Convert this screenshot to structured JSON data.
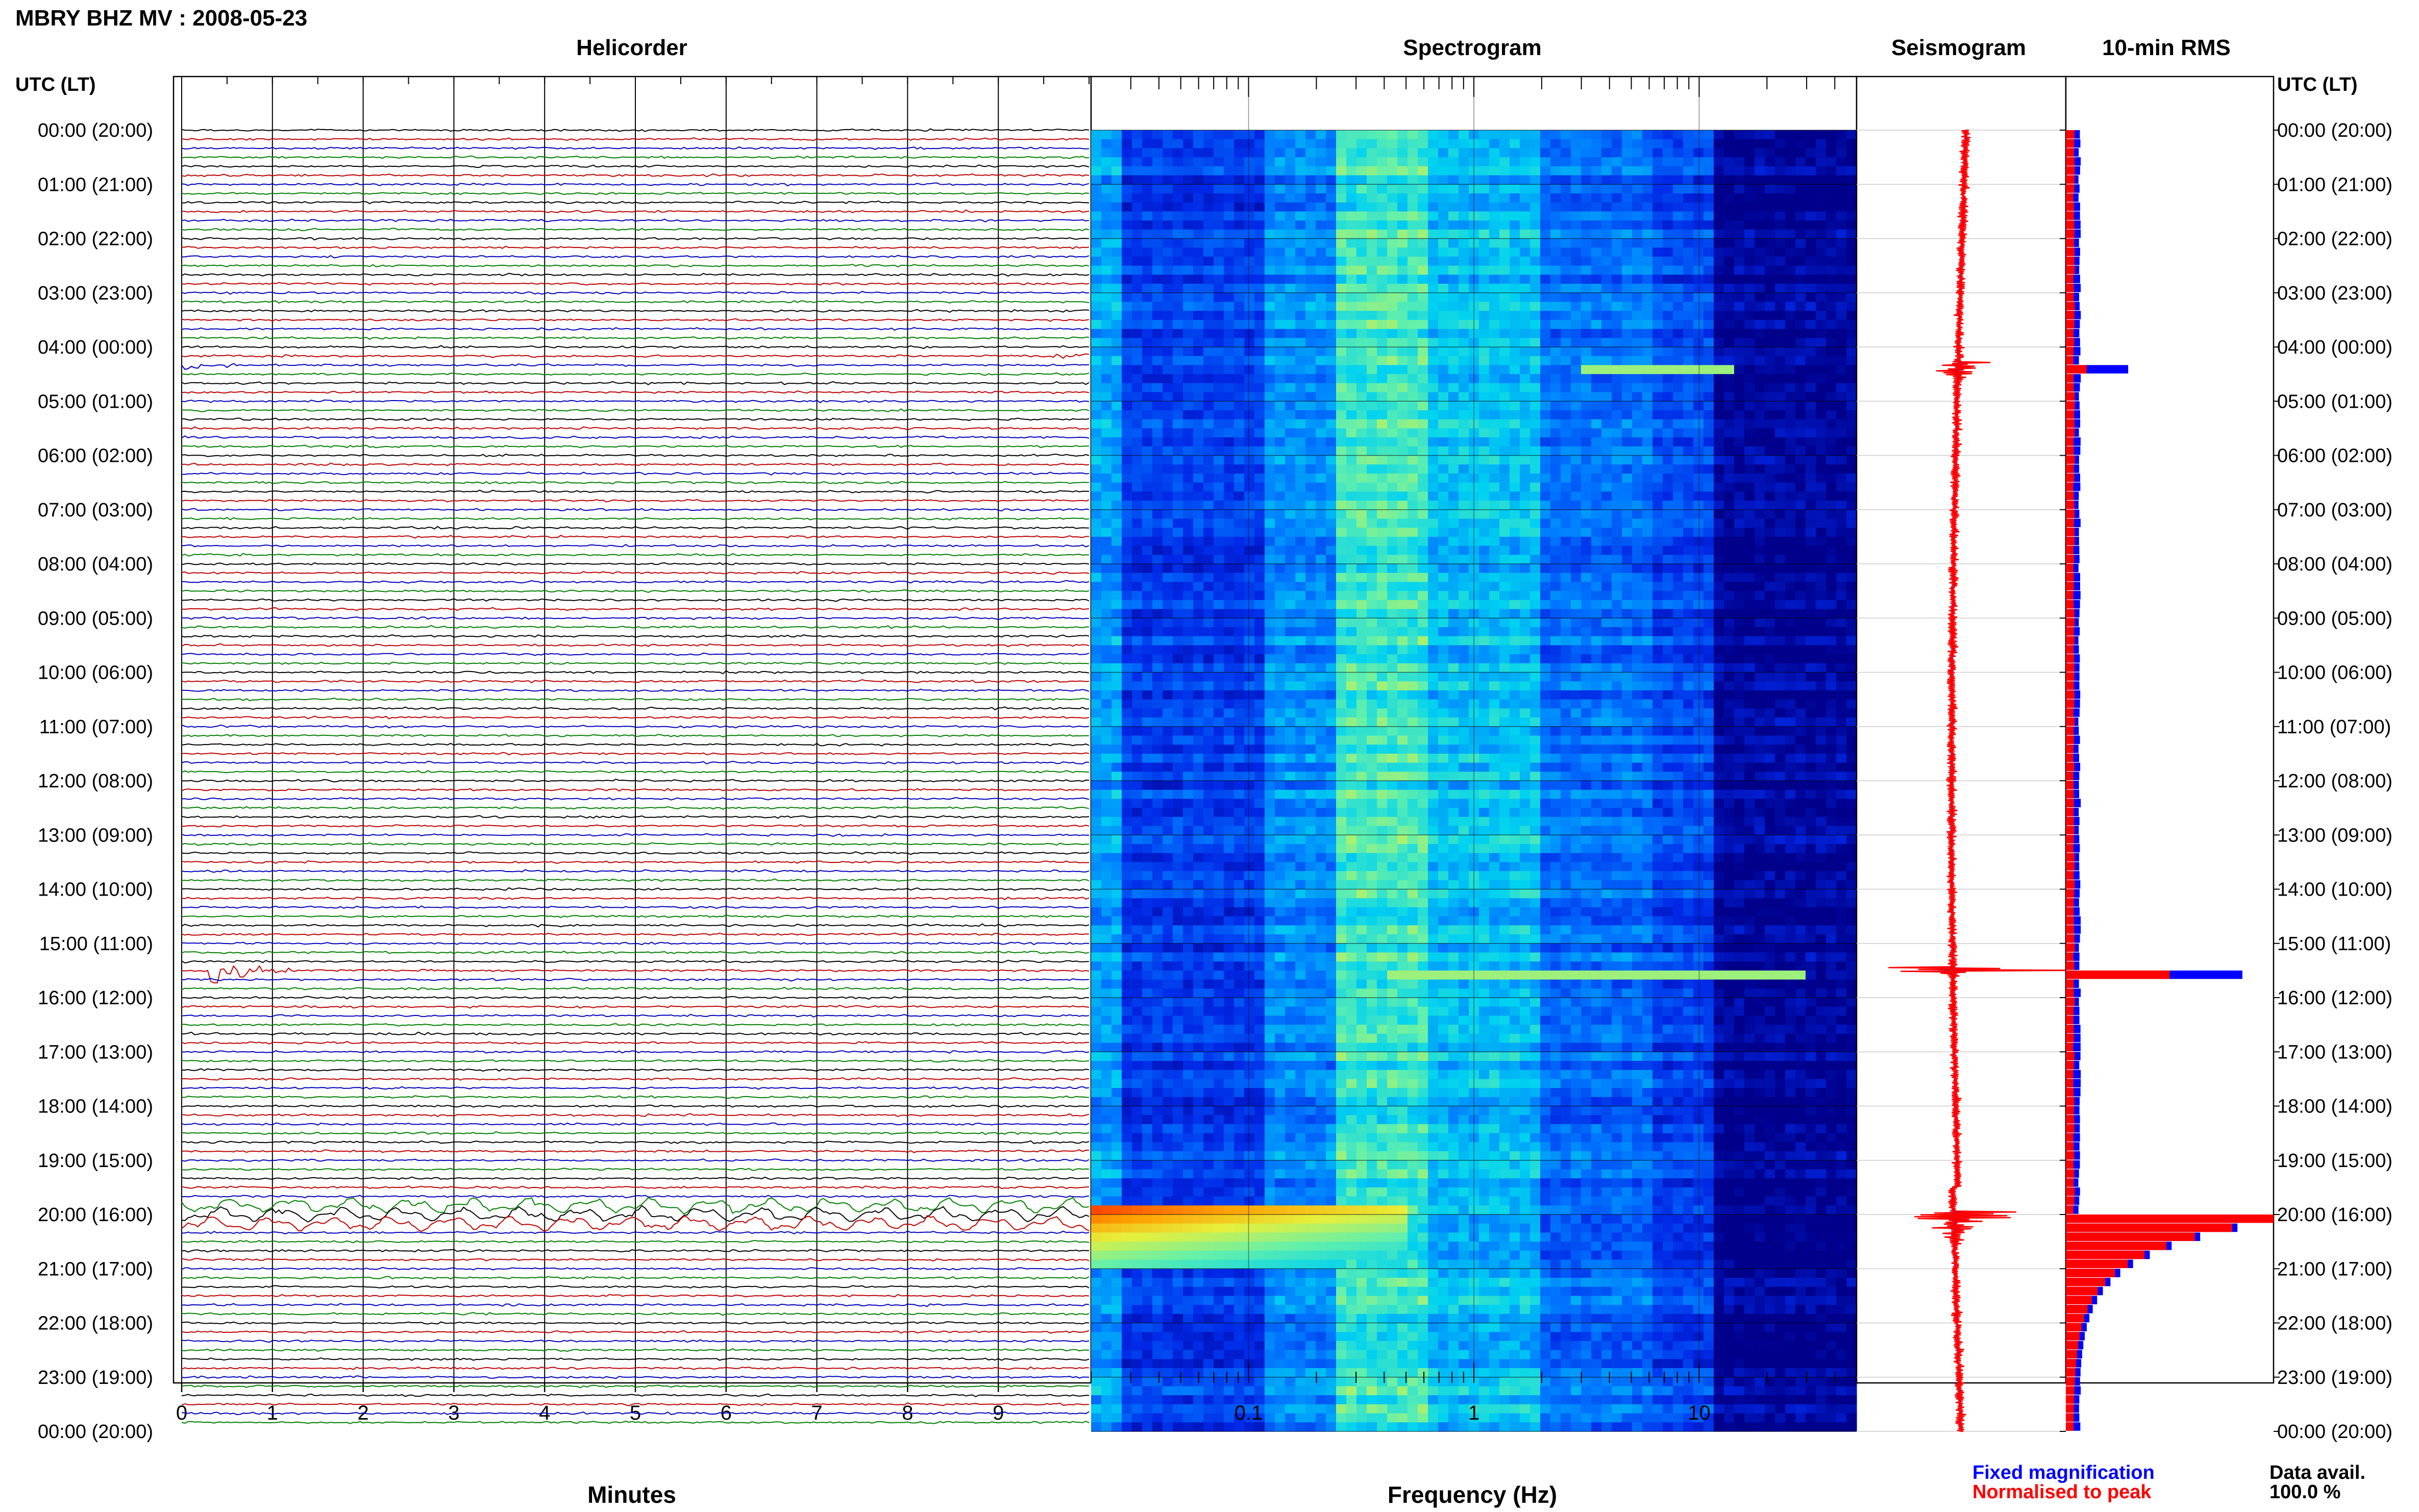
{
  "page": {
    "title": "MBRY BHZ MV : 2008-05-23",
    "utc_header_left": "UTC (LT)",
    "utc_header_right": "UTC (LT)",
    "time_labels": [
      "00:00 (20:00)",
      "01:00 (21:00)",
      "02:00 (22:00)",
      "03:00 (23:00)",
      "04:00 (00:00)",
      "05:00 (01:00)",
      "06:00 (02:00)",
      "07:00 (03:00)",
      "08:00 (04:00)",
      "09:00 (05:00)",
      "10:00 (06:00)",
      "11:00 (07:00)",
      "12:00 (08:00)",
      "13:00 (09:00)",
      "14:00 (10:00)",
      "15:00 (11:00)",
      "16:00 (12:00)",
      "17:00 (13:00)",
      "18:00 (14:00)",
      "19:00 (15:00)",
      "20:00 (16:00)",
      "21:00 (17:00)",
      "22:00 (18:00)",
      "23:00 (19:00)",
      "00:00 (20:00)"
    ],
    "legend": {
      "fixed": "Fixed magnification",
      "normalised": "Normalised to peak",
      "data_avail_label": "Data avail.",
      "data_avail_value": "100.0 %"
    },
    "colors": {
      "trace_cycle": [
        "#000000",
        "#c00000",
        "#0000c0",
        "#008000"
      ],
      "fixed_bar": "#0000ff",
      "normalised_bar": "#ff0000",
      "spectrogram_low": "#00008b",
      "spectrogram_high": "#ff2000"
    }
  },
  "chart_data": [
    {
      "type": "line",
      "title": "Helicorder",
      "xlabel": "Minutes",
      "x_ticks": [
        "0",
        "1",
        "2",
        "3",
        "4",
        "5",
        "6",
        "7",
        "8",
        "9"
      ],
      "xlim": [
        0,
        10
      ],
      "rows": 144,
      "row_minutes": 10,
      "events": [
        {
          "utc": "04:20",
          "minute_start": 0.0,
          "minute_end": 1.0,
          "amplitude": "medium"
        },
        {
          "utc": "04:10",
          "minute_start": 9.6,
          "minute_end": 10.0,
          "amplitude": "small"
        },
        {
          "utc": "15:30",
          "minute_start": 0.3,
          "minute_end": 1.5,
          "amplitude": "large"
        },
        {
          "utc": "19:50",
          "minute_start": 0.0,
          "minute_end": 10.0,
          "amplitude": "long-period swell"
        },
        {
          "utc": "20:00",
          "minute_start": 0.0,
          "minute_end": 10.0,
          "amplitude": "long-period swell"
        },
        {
          "utc": "20:10",
          "minute_start": 0.0,
          "minute_end": 10.0,
          "amplitude": "long-period swell"
        }
      ]
    },
    {
      "type": "heatmap",
      "title": "Spectrogram",
      "xlabel": "Frequency (Hz)",
      "x_scale": "log",
      "xlim": [
        0.02,
        50
      ],
      "x_ticks": [
        "0.1",
        "1",
        "10"
      ],
      "x_tick_values": [
        0.1,
        1,
        10
      ],
      "features": [
        {
          "utc": "04:20",
          "band_hz": [
            3,
            15
          ],
          "note": "narrow high-frequency line"
        },
        {
          "utc": "15:30",
          "band_hz": [
            0.4,
            30
          ],
          "note": "broadband line"
        },
        {
          "utc": "19:50-21:00",
          "band_hz": [
            0.02,
            0.5
          ],
          "note": "strong low-frequency energy"
        }
      ]
    },
    {
      "type": "line",
      "title": "Seismogram",
      "events": [
        {
          "utc": "04:20",
          "relative_amplitude": 0.25
        },
        {
          "utc": "15:30",
          "relative_amplitude": 1.0
        },
        {
          "utc": "20:00",
          "relative_amplitude": 0.55
        }
      ]
    },
    {
      "type": "bar",
      "title": "10-min RMS",
      "orientation": "horizontal",
      "series": [
        {
          "name": "Fixed magnification"
        },
        {
          "name": "Normalised to peak"
        }
      ],
      "peaks": [
        {
          "utc": "04:20",
          "fixed": 0.3,
          "normalised": 0.1
        },
        {
          "utc": "15:30",
          "fixed": 0.85,
          "normalised": 0.5
        },
        {
          "utc": "20:00",
          "fixed": 1.0,
          "normalised": 1.0
        }
      ]
    }
  ]
}
